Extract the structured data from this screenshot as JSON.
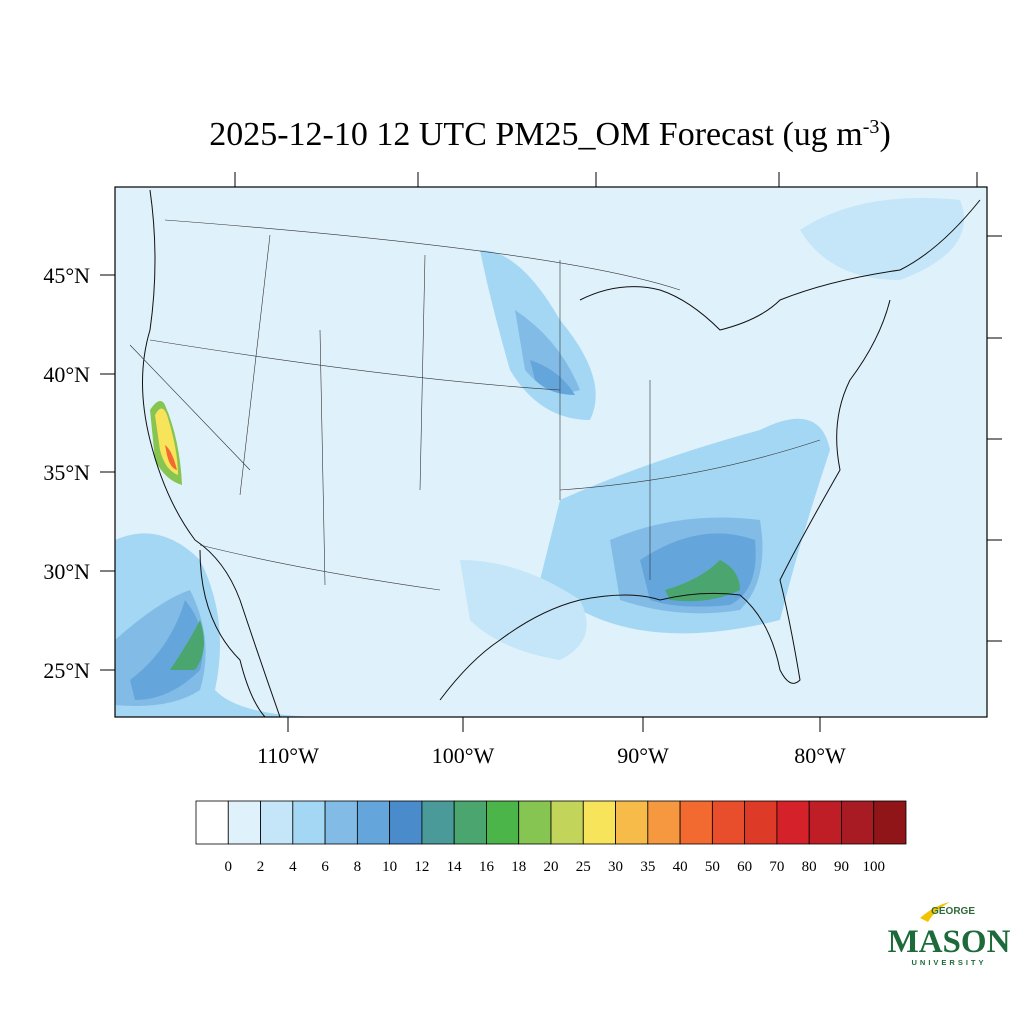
{
  "title": {
    "main": "2025-12-10 12 UTC PM25_OM Forecast (ug m",
    "superscript": "-3",
    "end": ")"
  },
  "lat_labels": [
    "45°N",
    "40°N",
    "35°N",
    "30°N",
    "25°N"
  ],
  "lon_labels": [
    "110°W",
    "100°W",
    "90°W",
    "80°W"
  ],
  "colorbar": {
    "levels": [
      0,
      2,
      4,
      6,
      8,
      10,
      12,
      14,
      16,
      18,
      20,
      25,
      30,
      35,
      40,
      50,
      60,
      70,
      80,
      90,
      100
    ],
    "colors": [
      "#ffffff",
      "#dff1fb",
      "#c4e6f8",
      "#a3d7f4",
      "#82bce6",
      "#64a6dc",
      "#4a8ccb",
      "#4a9a9a",
      "#4aa66e",
      "#4bb54a",
      "#86c552",
      "#c3d45a",
      "#f8e45a",
      "#f7bb4a",
      "#f59840",
      "#f26a2f",
      "#e84e2c",
      "#de3a28",
      "#d4212a",
      "#c01e27",
      "#a81b22",
      "#8f1519"
    ]
  },
  "logo": {
    "top": "GEORGE",
    "name": "MASON",
    "bottom": "UNIVERSITY"
  }
}
